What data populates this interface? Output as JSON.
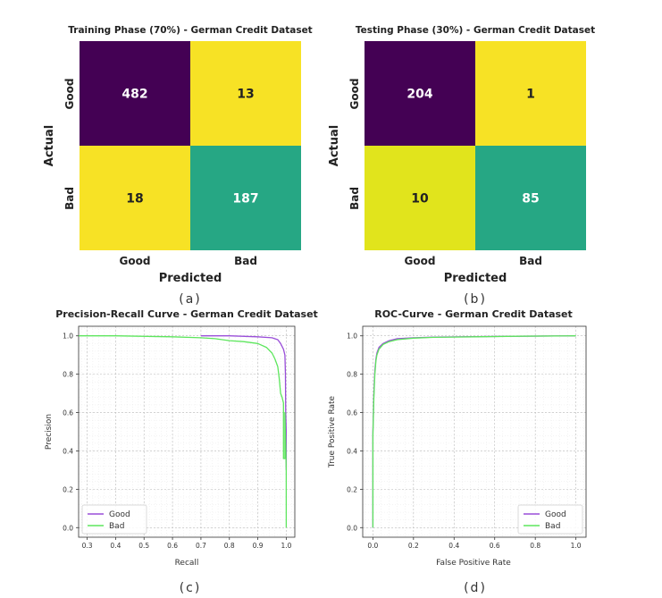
{
  "chart_data": [
    {
      "type": "heatmap",
      "title": "Training Phase (70%) - German Credit Dataset",
      "xlabel": "Predicted",
      "ylabel": "Actual",
      "x_ticklabels": [
        "Good",
        "Bad"
      ],
      "y_ticklabels": [
        "Good",
        "Bad"
      ],
      "matrix": [
        [
          482,
          13
        ],
        [
          18,
          187
        ]
      ],
      "panel_label": "(a)",
      "colors": {
        "low": "#f7e225",
        "mid": "#26a784",
        "high": "#440154",
        "low_text": "#222222",
        "high_text": "#ffffff"
      }
    },
    {
      "type": "heatmap",
      "title": "Testing Phase (30%) - German Credit Dataset",
      "xlabel": "Predicted",
      "ylabel": "Actual",
      "x_ticklabels": [
        "Good",
        "Bad"
      ],
      "y_ticklabels": [
        "Good",
        "Bad"
      ],
      "matrix": [
        [
          204,
          1
        ],
        [
          10,
          85
        ]
      ],
      "panel_label": "(b)",
      "colors": {
        "low": "#f7e225",
        "lowish": "#e1e41c",
        "mid": "#26a784",
        "high": "#440154",
        "low_text": "#222222",
        "high_text": "#ffffff"
      }
    },
    {
      "type": "line",
      "title": "Precision-Recall Curve - German Credit Dataset",
      "xlabel": "Recall",
      "ylabel": "Precision",
      "xlim": [
        0.27,
        1.03
      ],
      "ylim": [
        -0.05,
        1.05
      ],
      "xticks": [
        "0.3",
        "0.4",
        "0.5",
        "0.6",
        "0.7",
        "0.8",
        "0.9",
        "1.0"
      ],
      "yticks": [
        "0.0",
        "0.2",
        "0.4",
        "0.6",
        "0.8",
        "1.0"
      ],
      "legend_position": "lower-left",
      "panel_label": "(c)",
      "series": [
        {
          "name": "Good",
          "color": "#9a4fd9",
          "x": [
            0.7,
            0.8,
            0.9,
            0.95,
            0.97,
            0.98,
            0.99,
            0.995,
            0.997,
            0.998,
            1.0,
            1.0
          ],
          "y": [
            1.0,
            1.0,
            0.995,
            0.99,
            0.98,
            0.96,
            0.93,
            0.9,
            0.8,
            0.6,
            0.5,
            0.3
          ]
        },
        {
          "name": "Bad",
          "color": "#5de65d",
          "x": [
            0.27,
            0.4,
            0.6,
            0.7,
            0.75,
            0.8,
            0.85,
            0.9,
            0.93,
            0.95,
            0.96,
            0.97,
            0.975,
            0.98,
            0.985,
            0.99,
            0.99,
            0.995,
            0.995,
            1.0,
            1.0
          ],
          "y": [
            1.0,
            1.0,
            0.995,
            0.99,
            0.985,
            0.975,
            0.97,
            0.96,
            0.94,
            0.91,
            0.88,
            0.84,
            0.78,
            0.7,
            0.68,
            0.65,
            0.36,
            0.36,
            0.6,
            0.3,
            0.0
          ]
        }
      ]
    },
    {
      "type": "line",
      "title": "ROC-Curve - German Credit Dataset",
      "xlabel": "False Positive Rate",
      "ylabel": "True Positive Rate",
      "xlim": [
        -0.05,
        1.05
      ],
      "ylim": [
        -0.05,
        1.05
      ],
      "xticks": [
        "0.0",
        "0.2",
        "0.4",
        "0.6",
        "0.8",
        "1.0"
      ],
      "yticks": [
        "0.0",
        "0.2",
        "0.4",
        "0.6",
        "0.8",
        "1.0"
      ],
      "legend_position": "lower-right",
      "panel_label": "(d)",
      "series": [
        {
          "name": "Good",
          "color": "#9a4fd9",
          "x": [
            0.0,
            0.0,
            0.005,
            0.01,
            0.015,
            0.02,
            0.03,
            0.05,
            0.08,
            0.12,
            0.2,
            0.3,
            0.5,
            0.7,
            1.0
          ],
          "y": [
            0.0,
            0.5,
            0.7,
            0.82,
            0.88,
            0.91,
            0.94,
            0.96,
            0.975,
            0.985,
            0.99,
            0.993,
            0.996,
            0.998,
            1.0
          ]
        },
        {
          "name": "Bad",
          "color": "#5de65d",
          "x": [
            0.0,
            0.0,
            0.005,
            0.01,
            0.015,
            0.02,
            0.03,
            0.05,
            0.08,
            0.12,
            0.2,
            0.3,
            0.5,
            0.7,
            1.0
          ],
          "y": [
            0.0,
            0.48,
            0.68,
            0.8,
            0.87,
            0.9,
            0.93,
            0.955,
            0.97,
            0.98,
            0.988,
            0.992,
            0.995,
            0.998,
            1.0
          ]
        }
      ]
    }
  ]
}
